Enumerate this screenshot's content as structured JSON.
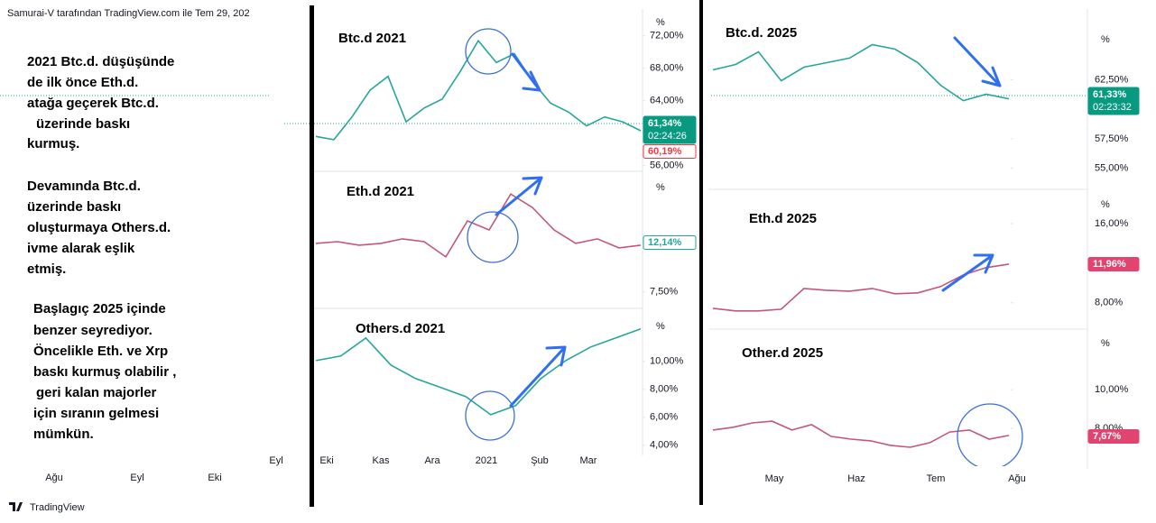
{
  "header": "Samurai-V tarafından TradingView.com ile Tem 29, 202",
  "notes": [
    "2021 Btc.d. düşüşünde",
    "de ilk önce Eth.d.",
    "atağa geçerek Btc.d.",
    "üzerinde baskı",
    "kurmuş.",
    "Devamında Btc.d.",
    "üzerinde baskı",
    "oluşturmaya Others.d.",
    "ivme alarak eşlik",
    "etmiş.",
    "Başlagıç 2025 içinde",
    "benzer seyrediyor.",
    "Öncelikle Eth. ve Xrp",
    "baskı kurmuş olabilir ,",
    "geri kalan majorler",
    "için sıranın gelmesi",
    "mümkün."
  ],
  "left_xaxis": [
    "Ağu",
    "Eyl",
    "Eki"
  ],
  "middle": {
    "xaxis": [
      "Eyl",
      "Eki",
      "Kas",
      "Ara",
      "2021",
      "Şub",
      "Mar"
    ],
    "panels": [
      {
        "title": "Btc.d  2021",
        "unit": "%",
        "ylim": [
          55.3,
          75.3
        ],
        "yticks": [
          {
            "value": 72,
            "label": "72,00%"
          },
          {
            "value": 68,
            "label": "68,00%"
          },
          {
            "value": 64,
            "label": "64,00%"
          },
          {
            "value": 56,
            "label": "56,00%"
          }
        ],
        "color": "#26a69a",
        "values": [
          59.6,
          59.2,
          62.0,
          65.3,
          67.0,
          61.4,
          63.1,
          64.2,
          67.6,
          71.4,
          68.7,
          69.8,
          66.4,
          63.7,
          62.6,
          60.9,
          62.0,
          61.4,
          60.3
        ],
        "badges": [
          {
            "label": "61,34%",
            "sub": "02:24:26",
            "style": "green"
          },
          {
            "label": "60,19%",
            "style": "red-outline"
          }
        ]
      },
      {
        "title": "Eth.d 2021",
        "unit": "%",
        "ylim": [
          6.1,
          18.6
        ],
        "yticks": [
          {
            "value": 7.5,
            "label": "7,50%"
          }
        ],
        "color": "#c2577a",
        "values": [
          12.14,
          12.31,
          11.97,
          12.14,
          12.57,
          12.31,
          10.85,
          14.29,
          13.43,
          16.86,
          15.57,
          13.43,
          12.14,
          12.57,
          11.71,
          11.97
        ],
        "badges": [
          {
            "label": "12,14%",
            "style": "teal-outline"
          }
        ]
      },
      {
        "title": "Others.d 2021",
        "unit": "%",
        "ylim": [
          3.6,
          13.6
        ],
        "yticks": [
          {
            "value": 10,
            "label": "10,00%"
          },
          {
            "value": 8,
            "label": "8,00%"
          },
          {
            "value": 6,
            "label": "6,00%"
          },
          {
            "value": 4,
            "label": "4,00%"
          }
        ],
        "color": "#26a69a",
        "values": [
          10.06,
          10.39,
          11.68,
          9.74,
          8.77,
          8.13,
          7.48,
          6.19,
          6.84,
          8.77,
          10.06,
          11.03,
          11.68,
          12.32
        ],
        "badges": []
      }
    ]
  },
  "right": {
    "xaxis": [
      "May",
      "Haz",
      "Tem",
      "Ağu"
    ],
    "panels": [
      {
        "title": "Btc.d. 2025",
        "unit": "%",
        "ylim": [
          53.6,
          68.5
        ],
        "yticks": [
          {
            "value": 62.5,
            "label": "62,50%"
          },
          {
            "value": 57.5,
            "label": "57,50%"
          },
          {
            "value": 55,
            "label": "55,00%"
          }
        ],
        "color": "#26a69a",
        "values": [
          63.34,
          63.8,
          64.87,
          62.42,
          63.57,
          63.95,
          64.34,
          65.48,
          65.1,
          63.95,
          62.04,
          60.74,
          61.28,
          60.89
        ],
        "badges": [
          {
            "label": "61,33%",
            "sub": "02:23:32",
            "style": "green"
          }
        ]
      },
      {
        "title": "Eth.d 2025",
        "unit": "%",
        "ylim": [
          5.8,
          19
        ],
        "yticks": [
          {
            "value": 16,
            "label": "16,00%"
          },
          {
            "value": 8,
            "label": "8,00%"
          }
        ],
        "color": "#c2577a",
        "values": [
          7.45,
          7.18,
          7.18,
          7.36,
          9.45,
          9.27,
          9.18,
          9.45,
          8.91,
          9.0,
          9.64,
          10.82,
          11.55,
          11.91
        ],
        "badges": [
          {
            "label": "11,96%",
            "style": "pink"
          }
        ]
      },
      {
        "title": "Other.d 2025",
        "unit": "%",
        "ylim": [
          5.9,
          12.9
        ],
        "yticks": [
          {
            "value": 10,
            "label": "10,00%"
          },
          {
            "value": 8,
            "label": "8,00%"
          }
        ],
        "color": "#c2577a",
        "values": [
          7.91,
          8.05,
          8.28,
          8.37,
          7.91,
          8.19,
          7.58,
          7.44,
          7.35,
          7.12,
          7.02,
          7.26,
          7.81,
          7.91,
          7.44,
          7.63
        ],
        "badges": [
          {
            "label": "7,67%",
            "style": "pink"
          }
        ]
      }
    ]
  },
  "footer": "TradingView"
}
